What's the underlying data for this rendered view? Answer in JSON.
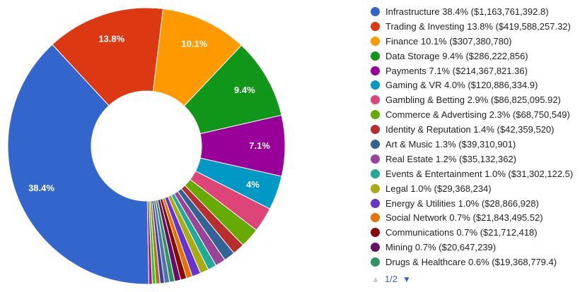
{
  "chart_data": {
    "type": "pie",
    "variant": "donut",
    "title": "",
    "legend_position": "right",
    "grid": false,
    "start_angle_deg": 179,
    "center": [
      207,
      207
    ],
    "outer_radius": 196,
    "inner_radius": 78,
    "label_radius": 160,
    "pie_label_color": "#ffffff",
    "slices": [
      {
        "name": "Infrastructure",
        "pct": 38.4,
        "pct_label": "38.4%",
        "amount": "$1,163,761,392.8",
        "color": "#3366CC",
        "pie_label": "38.4%"
      },
      {
        "name": "Trading & Investing",
        "pct": 13.8,
        "pct_label": "13.8%",
        "amount": "$419,588,257.32",
        "color": "#DC3912",
        "pie_label": "13.8%"
      },
      {
        "name": "Finance",
        "pct": 10.1,
        "pct_label": "10.1%",
        "amount": "$307,380,780",
        "color": "#FF9900",
        "pie_label": "10.1%"
      },
      {
        "name": "Data Storage",
        "pct": 9.4,
        "pct_label": "9.4%",
        "amount": "$286,222,856",
        "color": "#109618",
        "pie_label": "9.4%"
      },
      {
        "name": "Payments",
        "pct": 7.1,
        "pct_label": "7.1%",
        "amount": "$214,367,821.36",
        "color": "#990099",
        "pie_label": "7.1%"
      },
      {
        "name": "Gaming & VR",
        "pct": 4.0,
        "pct_label": "4.0%",
        "amount": "$120,886,334.9",
        "color": "#0099C6",
        "pie_label": "4%"
      },
      {
        "name": "Gambling & Betting",
        "pct": 2.9,
        "pct_label": "2.9%",
        "amount": "$86,825,095.92",
        "color": "#DD4477",
        "pie_label": null
      },
      {
        "name": "Commerce & Advertising",
        "pct": 2.3,
        "pct_label": "2.3%",
        "amount": "$68,750,549",
        "color": "#66AA00",
        "pie_label": null
      },
      {
        "name": "Identity & Reputation",
        "pct": 1.4,
        "pct_label": "1.4%",
        "amount": "$42,359,520",
        "color": "#B82E2E",
        "pie_label": null
      },
      {
        "name": "Art & Music",
        "pct": 1.3,
        "pct_label": "1.3%",
        "amount": "$39,310,901",
        "color": "#316395",
        "pie_label": null
      },
      {
        "name": "Real Estate",
        "pct": 1.2,
        "pct_label": "1.2%",
        "amount": "$35,132,362",
        "color": "#994499",
        "pie_label": null
      },
      {
        "name": "Events & Entertainment",
        "pct": 1.0,
        "pct_label": "1.0%",
        "amount": "$31,302,122.5",
        "color": "#22AA99",
        "pie_label": null
      },
      {
        "name": "Legal",
        "pct": 1.0,
        "pct_label": "1.0%",
        "amount": "$29,368,234",
        "color": "#AAAA11",
        "pie_label": null
      },
      {
        "name": "Energy & Utilities",
        "pct": 1.0,
        "pct_label": "1.0%",
        "amount": "$28,866,928",
        "color": "#6633CC",
        "pie_label": null
      },
      {
        "name": "Social Network",
        "pct": 0.7,
        "pct_label": "0.7%",
        "amount": "$21,843,495.52",
        "color": "#E67300",
        "pie_label": null
      },
      {
        "name": "Communications",
        "pct": 0.7,
        "pct_label": "0.7%",
        "amount": "$21,712,418",
        "color": "#8B0707",
        "pie_label": null
      },
      {
        "name": "Mining",
        "pct": 0.7,
        "pct_label": "0.7%",
        "amount": "$20,647,239",
        "color": "#651067",
        "pie_label": null
      },
      {
        "name": "Drugs & Healthcare",
        "pct": 0.6,
        "pct_label": "0.6%",
        "amount": "$19,368,779.4",
        "color": "#329262",
        "pie_label": null
      }
    ],
    "remainder_slices_on_legend_page_2": [
      {
        "pct": 0.6,
        "color": "#5574A6"
      },
      {
        "pct": 0.5,
        "color": "#3B3EAC"
      },
      {
        "pct": 0.5,
        "color": "#B77322"
      },
      {
        "pct": 0.4,
        "color": "#16D620"
      },
      {
        "pct": 0.4,
        "color": "#B91383"
      }
    ]
  },
  "legend": {
    "text_color": "#222222",
    "pagination": {
      "label": "1/2",
      "up_arrow": "▲",
      "down_arrow": "▼",
      "up_color": "#cccccc",
      "down_color": "#3366cc",
      "label_color": "#3366cc"
    }
  }
}
